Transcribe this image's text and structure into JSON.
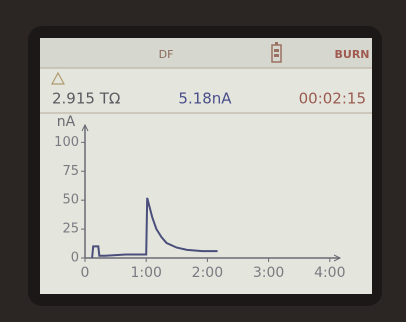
{
  "header": {
    "mode": "DF",
    "status": "BURN"
  },
  "readings": {
    "resistance": "2.915 TΩ",
    "current": "5.18nA",
    "elapsed": "00:02:15"
  },
  "chart_data": {
    "type": "line",
    "y_label": "nA",
    "color": "#4a4e7a",
    "x": [
      7,
      8,
      13,
      14,
      20,
      40,
      58,
      60,
      61,
      63,
      66,
      70,
      75,
      80,
      90,
      100,
      115,
      130
    ],
    "values": [
      0,
      10,
      10,
      2,
      2,
      3,
      3,
      3,
      52,
      45,
      35,
      25,
      18,
      13,
      9,
      7,
      6,
      6
    ],
    "xlim": [
      0,
      250
    ],
    "xticks": [
      0,
      {
        "value": 60,
        "label": "1:00"
      },
      {
        "value": 120,
        "label": "2:00"
      },
      {
        "value": 180,
        "label": "3:00"
      },
      {
        "value": 240,
        "label": "4:00"
      }
    ],
    "ylim": [
      0,
      115
    ],
    "yticks": [
      0,
      25,
      50,
      75,
      100
    ]
  }
}
